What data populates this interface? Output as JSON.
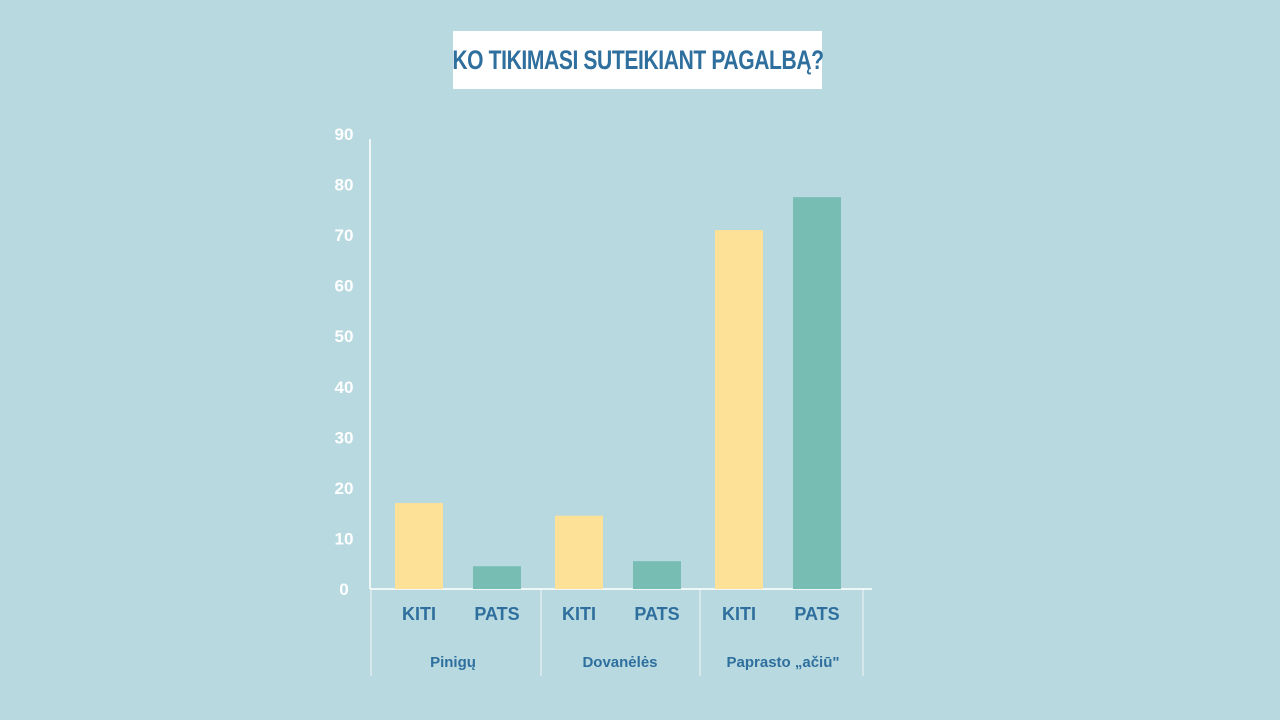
{
  "chart_data": {
    "type": "bar",
    "title": "KO TIKIMASI SUTEIKIANT PAGALBĄ?",
    "groups": [
      "Pinigų",
      "Dovanėlės",
      "Paprasto  „ačiū\""
    ],
    "series": [
      {
        "name": "KITI",
        "values": [
          17,
          14.5,
          71
        ]
      },
      {
        "name": "PATS",
        "values": [
          4.5,
          5.5,
          77.5
        ]
      }
    ],
    "ylim": [
      0,
      90
    ],
    "yticks": [
      0,
      10,
      20,
      30,
      40,
      50,
      60,
      70,
      80,
      90
    ],
    "grid": false,
    "colors": {
      "KITI": "#fde196",
      "PATS": "#77bdb4",
      "axis": "#ffffff",
      "label": "#2e6f9e"
    }
  }
}
